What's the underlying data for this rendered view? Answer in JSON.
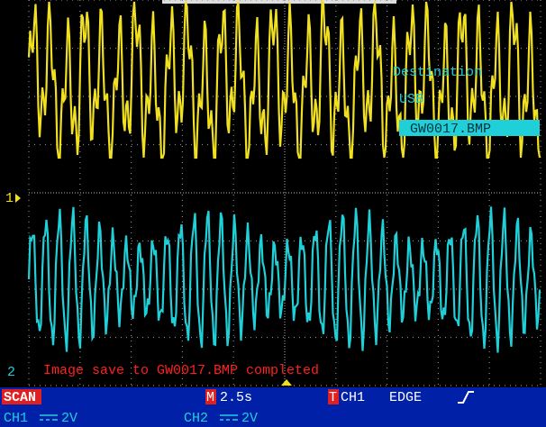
{
  "screen": {
    "channel_markers": {
      "ch1": "1",
      "ch2": "2"
    },
    "save_menu": {
      "title": "Destination",
      "device": "USB",
      "file": "GW0017.BMP"
    },
    "message": "Image save to GW0017.BMP completed",
    "status_bar": {
      "mode": "SCAN",
      "timebase_icon": "M",
      "timebase": "2.5s",
      "trigger_icon": "T",
      "trigger_source": "CH1",
      "trigger_type": "EDGE",
      "ch1_label": "CH1",
      "ch1_scale": "2V",
      "ch2_label": "CH2",
      "ch2_scale": "2V"
    }
  }
}
